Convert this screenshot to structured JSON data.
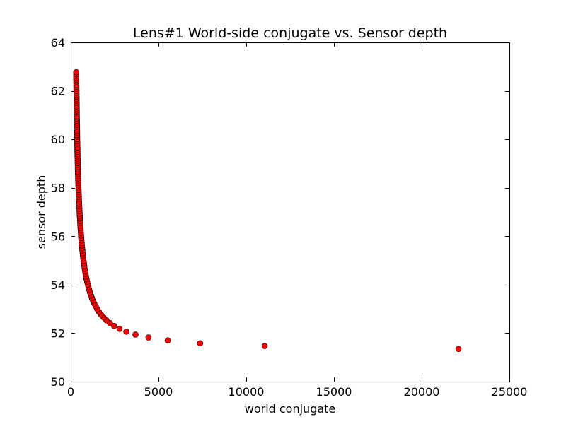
{
  "chart_data": {
    "type": "scatter",
    "title": "Lens#1 World-side conjugate vs. Sensor depth",
    "xlabel": "world conjugate",
    "ylabel": "sensor depth",
    "xlim": [
      0,
      25000
    ],
    "ylim": [
      50,
      64
    ],
    "x_ticks": [
      0,
      5000,
      10000,
      15000,
      20000,
      25000
    ],
    "x_tick_labels": [
      "0",
      "5000",
      "10000",
      "15000",
      "20000",
      "25000"
    ],
    "y_ticks": [
      50,
      52,
      54,
      56,
      58,
      60,
      62,
      64
    ],
    "y_tick_labels": [
      "50",
      "52",
      "54",
      "56",
      "58",
      "60",
      "62",
      "64"
    ],
    "grid": false,
    "legend": "none",
    "marker_color": "#ff0000",
    "marker_edge_color": "#000000",
    "series": [
      {
        "points": [
          [
            22100,
            51.35
          ],
          [
            11050,
            51.47
          ],
          [
            7370,
            51.58
          ],
          [
            5530,
            51.7
          ],
          [
            4430,
            51.82
          ],
          [
            3690,
            51.94
          ],
          [
            3170,
            52.06
          ],
          [
            2780,
            52.18
          ],
          [
            2470,
            52.3
          ],
          [
            2230,
            52.42
          ],
          [
            2030,
            52.53
          ],
          [
            1870,
            52.65
          ],
          [
            1730,
            52.76
          ],
          [
            1610,
            52.88
          ],
          [
            1510,
            52.99
          ],
          [
            1420,
            53.11
          ],
          [
            1340,
            53.22
          ],
          [
            1270,
            53.34
          ],
          [
            1210,
            53.45
          ],
          [
            1150,
            53.56
          ],
          [
            1100,
            53.67
          ],
          [
            1050,
            53.79
          ],
          [
            1010,
            53.9
          ],
          [
            970,
            54.01
          ],
          [
            935,
            54.12
          ],
          [
            900,
            54.23
          ],
          [
            870,
            54.34
          ],
          [
            845,
            54.45
          ],
          [
            820,
            54.55
          ],
          [
            795,
            54.66
          ],
          [
            773,
            54.77
          ],
          [
            752,
            54.88
          ],
          [
            732,
            54.98
          ],
          [
            714,
            55.09
          ],
          [
            696,
            55.2
          ],
          [
            680,
            55.3
          ],
          [
            664,
            55.41
          ],
          [
            650,
            55.51
          ],
          [
            636,
            55.62
          ],
          [
            623,
            55.72
          ],
          [
            611,
            55.83
          ],
          [
            599,
            55.93
          ],
          [
            588,
            56.03
          ],
          [
            577,
            56.14
          ],
          [
            567,
            56.24
          ],
          [
            557,
            56.34
          ],
          [
            548,
            56.44
          ],
          [
            539,
            56.54
          ],
          [
            530,
            56.64
          ],
          [
            522,
            56.74
          ],
          [
            514,
            56.84
          ],
          [
            507,
            56.94
          ],
          [
            500,
            57.04
          ],
          [
            493,
            57.14
          ],
          [
            486,
            57.24
          ],
          [
            480,
            57.34
          ],
          [
            474,
            57.43
          ],
          [
            468,
            57.53
          ],
          [
            462,
            57.63
          ],
          [
            457,
            57.72
          ],
          [
            452,
            57.82
          ],
          [
            447,
            57.91
          ],
          [
            442,
            58.01
          ],
          [
            437,
            58.1
          ],
          [
            433,
            58.2
          ],
          [
            428,
            58.29
          ],
          [
            424,
            58.39
          ],
          [
            420,
            58.48
          ],
          [
            416,
            58.57
          ],
          [
            412,
            58.66
          ],
          [
            409,
            58.76
          ],
          [
            405,
            58.85
          ],
          [
            402,
            58.94
          ],
          [
            398,
            59.03
          ],
          [
            395,
            59.12
          ],
          [
            392,
            59.21
          ],
          [
            389,
            59.3
          ],
          [
            386,
            59.39
          ],
          [
            383,
            59.48
          ],
          [
            380,
            59.57
          ],
          [
            378,
            59.66
          ],
          [
            375,
            59.75
          ],
          [
            373,
            59.83
          ],
          [
            370,
            59.92
          ],
          [
            368,
            60.01
          ],
          [
            365,
            60.1
          ],
          [
            363,
            60.18
          ],
          [
            361,
            60.27
          ],
          [
            359,
            60.35
          ],
          [
            357,
            60.44
          ],
          [
            355,
            60.52
          ],
          [
            353,
            60.61
          ],
          [
            351,
            60.69
          ],
          [
            349,
            60.78
          ],
          [
            347,
            60.86
          ],
          [
            345,
            60.94
          ],
          [
            343,
            61.03
          ],
          [
            342,
            61.11
          ],
          [
            340,
            61.19
          ],
          [
            338,
            61.27
          ],
          [
            337,
            61.36
          ],
          [
            335,
            61.44
          ],
          [
            334,
            61.52
          ],
          [
            332,
            61.6
          ],
          [
            331,
            61.68
          ],
          [
            329,
            61.76
          ],
          [
            328,
            61.84
          ],
          [
            326,
            61.92
          ],
          [
            325,
            62.0
          ],
          [
            324,
            62.08
          ],
          [
            322,
            62.16
          ],
          [
            321,
            62.23
          ],
          [
            320,
            62.31
          ],
          [
            319,
            62.39
          ],
          [
            317,
            62.47
          ],
          [
            316,
            62.54
          ],
          [
            315,
            62.62
          ],
          [
            314,
            62.7
          ],
          [
            313,
            62.77
          ]
        ]
      }
    ]
  }
}
